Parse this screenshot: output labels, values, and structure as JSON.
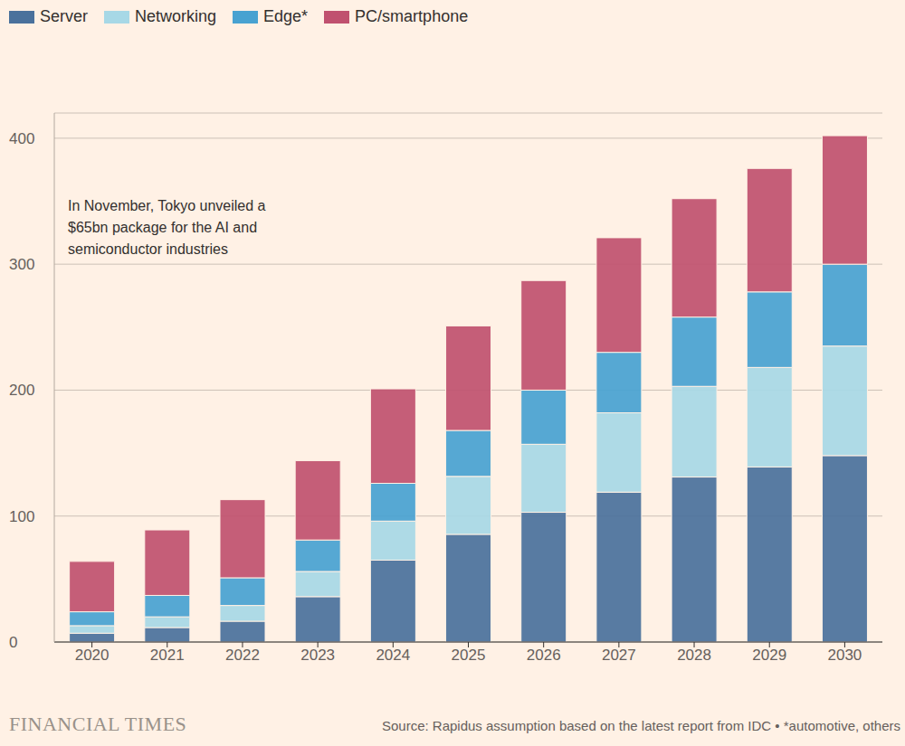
{
  "chart_data": {
    "type": "bar",
    "stacked": true,
    "grid": true,
    "legend": "top-left",
    "annotation": "In November, Tokyo unveiled a $65bn package for the AI and semiconductor industries",
    "brand": "FINANCIAL TIMES",
    "source": "Source: Rapidus assumption based on the latest report from IDC • *automotive, others",
    "categories": [
      "2020",
      "2021",
      "2022",
      "2023",
      "2024",
      "2025",
      "2026",
      "2027",
      "2028",
      "2029",
      "2030"
    ],
    "series": [
      {
        "name": "Server",
        "color": "#4a719c",
        "values": [
          7,
          11.5,
          16.5,
          36,
          65,
          85.5,
          103,
          119,
          131,
          139,
          148
        ]
      },
      {
        "name": "Networking",
        "color": "#a7d8e6",
        "values": [
          6,
          8.5,
          12.5,
          20,
          31,
          46,
          54,
          63,
          72,
          79,
          87
        ]
      },
      {
        "name": "Edge*",
        "color": "#48a2d1",
        "values": [
          11,
          17,
          22,
          25,
          30,
          36.5,
          43,
          48,
          55,
          60,
          65
        ]
      },
      {
        "name": "PC/smartphone",
        "color": "#c0516f",
        "values": [
          40,
          52,
          62,
          63,
          75,
          83,
          87,
          91,
          94,
          98,
          102
        ]
      }
    ],
    "ylim": [
      0,
      420
    ],
    "yticks": [
      0,
      100,
      200,
      300,
      400
    ]
  }
}
